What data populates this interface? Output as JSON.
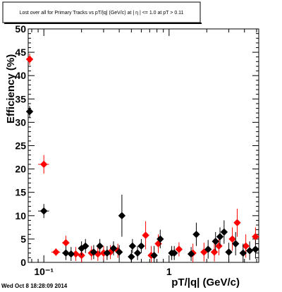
{
  "chart_data": {
    "type": "scatter",
    "title": "Lost over all for Primary Tracks vs pT/|q| (GeV/c) at |  η | <= 1.0 at pT > 0.11",
    "xlabel": "pT/|q| (GeV/c)",
    "ylabel": "Efficiency (%)",
    "xscale": "log",
    "xlim": [
      0.075,
      5.2
    ],
    "ylim": [
      0,
      50
    ],
    "xticks": [
      {
        "value": 0.1,
        "label": "10⁻¹"
      },
      {
        "value": 1,
        "label": "1"
      }
    ],
    "yticks": [
      0,
      5,
      10,
      15,
      20,
      25,
      30,
      35,
      40,
      45,
      50
    ],
    "grid": false,
    "legend": "none",
    "series": [
      {
        "color": "#ff0000",
        "points": [
          {
            "x": 0.077,
            "y": 43.5,
            "xerr": 0.003,
            "yerr": 1.2
          },
          {
            "x": 0.1,
            "y": 21.0,
            "xerr": 0.01,
            "yerr": 2.0
          },
          {
            "x": 0.125,
            "y": 2.2,
            "xerr": 0.01,
            "yerr": 0.8
          },
          {
            "x": 0.15,
            "y": 4.2,
            "xerr": 0.01,
            "yerr": 1.5
          },
          {
            "x": 0.18,
            "y": 1.8,
            "xerr": 0.01,
            "yerr": 1.5
          },
          {
            "x": 0.2,
            "y": 1.5,
            "xerr": 0.01,
            "yerr": 1.5
          },
          {
            "x": 0.24,
            "y": 2.0,
            "xerr": 0.01,
            "yerr": 1.5
          },
          {
            "x": 0.27,
            "y": 1.8,
            "xerr": 0.01,
            "yerr": 1.5
          },
          {
            "x": 0.3,
            "y": 2.0,
            "xerr": 0.01,
            "yerr": 1.5
          },
          {
            "x": 0.34,
            "y": 2.2,
            "xerr": 0.01,
            "yerr": 1.5
          },
          {
            "x": 0.39,
            "y": 2.5,
            "xerr": 0.01,
            "yerr": 1.5
          },
          {
            "x": 0.65,
            "y": 5.8,
            "xerr": 0.02,
            "yerr": 3.0
          },
          {
            "x": 0.72,
            "y": 1.5,
            "xerr": 0.02,
            "yerr": 2.0
          },
          {
            "x": 0.82,
            "y": 4.0,
            "xerr": 0.02,
            "yerr": 2.0
          },
          {
            "x": 1.2,
            "y": 2.8,
            "xerr": 0.04,
            "yerr": 1.5
          },
          {
            "x": 1.55,
            "y": 2.0,
            "xerr": 0.05,
            "yerr": 2.0
          },
          {
            "x": 1.9,
            "y": 2.2,
            "xerr": 0.05,
            "yerr": 2.0
          },
          {
            "x": 2.3,
            "y": 2.2,
            "xerr": 0.05,
            "yerr": 2.0
          },
          {
            "x": 2.5,
            "y": 3.5,
            "xerr": 0.05,
            "yerr": 2.0
          },
          {
            "x": 3.2,
            "y": 5.0,
            "xerr": 0.08,
            "yerr": 2.5
          },
          {
            "x": 3.5,
            "y": 8.5,
            "xerr": 0.08,
            "yerr": 3.0
          },
          {
            "x": 4.1,
            "y": 3.5,
            "xerr": 0.08,
            "yerr": 2.5
          },
          {
            "x": 4.9,
            "y": 5.5,
            "xerr": 0.1,
            "yerr": 2.0
          }
        ]
      },
      {
        "color": "#000000",
        "points": [
          {
            "x": 0.077,
            "y": 32.3,
            "xerr": 0.003,
            "yerr": 1.2
          },
          {
            "x": 0.1,
            "y": 11.0,
            "xerr": 0.01,
            "yerr": 1.5
          },
          {
            "x": 0.15,
            "y": 2.0,
            "xerr": 0.01,
            "yerr": 1.5
          },
          {
            "x": 0.165,
            "y": 1.8,
            "xerr": 0.01,
            "yerr": 1.5
          },
          {
            "x": 0.2,
            "y": 3.0,
            "xerr": 0.01,
            "yerr": 1.5
          },
          {
            "x": 0.215,
            "y": 3.5,
            "xerr": 0.01,
            "yerr": 1.5
          },
          {
            "x": 0.25,
            "y": 2.2,
            "xerr": 0.01,
            "yerr": 1.5
          },
          {
            "x": 0.28,
            "y": 3.5,
            "xerr": 0.01,
            "yerr": 1.5
          },
          {
            "x": 0.32,
            "y": 2.0,
            "xerr": 0.01,
            "yerr": 1.5
          },
          {
            "x": 0.36,
            "y": 3.0,
            "xerr": 0.01,
            "yerr": 1.5
          },
          {
            "x": 0.4,
            "y": 2.2,
            "xerr": 0.01,
            "yerr": 1.5
          },
          {
            "x": 0.42,
            "y": 10.0,
            "xerr": 0.01,
            "yerr": 4.5
          },
          {
            "x": 0.5,
            "y": 1.2,
            "xerr": 0.02,
            "yerr": 1.5
          },
          {
            "x": 0.51,
            "y": 3.5,
            "xerr": 0.02,
            "yerr": 1.5
          },
          {
            "x": 0.56,
            "y": 2.0,
            "xerr": 0.02,
            "yerr": 1.5
          },
          {
            "x": 0.6,
            "y": 3.5,
            "xerr": 0.02,
            "yerr": 1.5
          },
          {
            "x": 0.76,
            "y": 1.5,
            "xerr": 0.02,
            "yerr": 2.0
          },
          {
            "x": 0.85,
            "y": 5.0,
            "xerr": 0.02,
            "yerr": 2.0
          },
          {
            "x": 1.05,
            "y": 2.0,
            "xerr": 0.03,
            "yerr": 1.5
          },
          {
            "x": 1.1,
            "y": 2.0,
            "xerr": 0.03,
            "yerr": 1.5
          },
          {
            "x": 1.5,
            "y": 1.8,
            "xerr": 0.05,
            "yerr": 1.5
          },
          {
            "x": 1.65,
            "y": 6.0,
            "xerr": 0.05,
            "yerr": 2.5
          },
          {
            "x": 2.05,
            "y": 2.8,
            "xerr": 0.05,
            "yerr": 2.0
          },
          {
            "x": 2.35,
            "y": 4.5,
            "xerr": 0.05,
            "yerr": 2.0
          },
          {
            "x": 2.55,
            "y": 5.5,
            "xerr": 0.05,
            "yerr": 2.0
          },
          {
            "x": 2.75,
            "y": 6.5,
            "xerr": 0.05,
            "yerr": 2.5
          },
          {
            "x": 3.0,
            "y": 2.2,
            "xerr": 0.08,
            "yerr": 2.0
          },
          {
            "x": 3.4,
            "y": 4.0,
            "xerr": 0.08,
            "yerr": 2.5
          },
          {
            "x": 3.9,
            "y": 2.0,
            "xerr": 0.08,
            "yerr": 2.0
          },
          {
            "x": 4.4,
            "y": 2.5,
            "xerr": 0.08,
            "yerr": 2.0
          },
          {
            "x": 4.9,
            "y": 2.8,
            "xerr": 0.1,
            "yerr": 2.0
          }
        ]
      }
    ]
  },
  "footer": {
    "timestamp": "Wed Oct  8 18:28:09 2014"
  }
}
